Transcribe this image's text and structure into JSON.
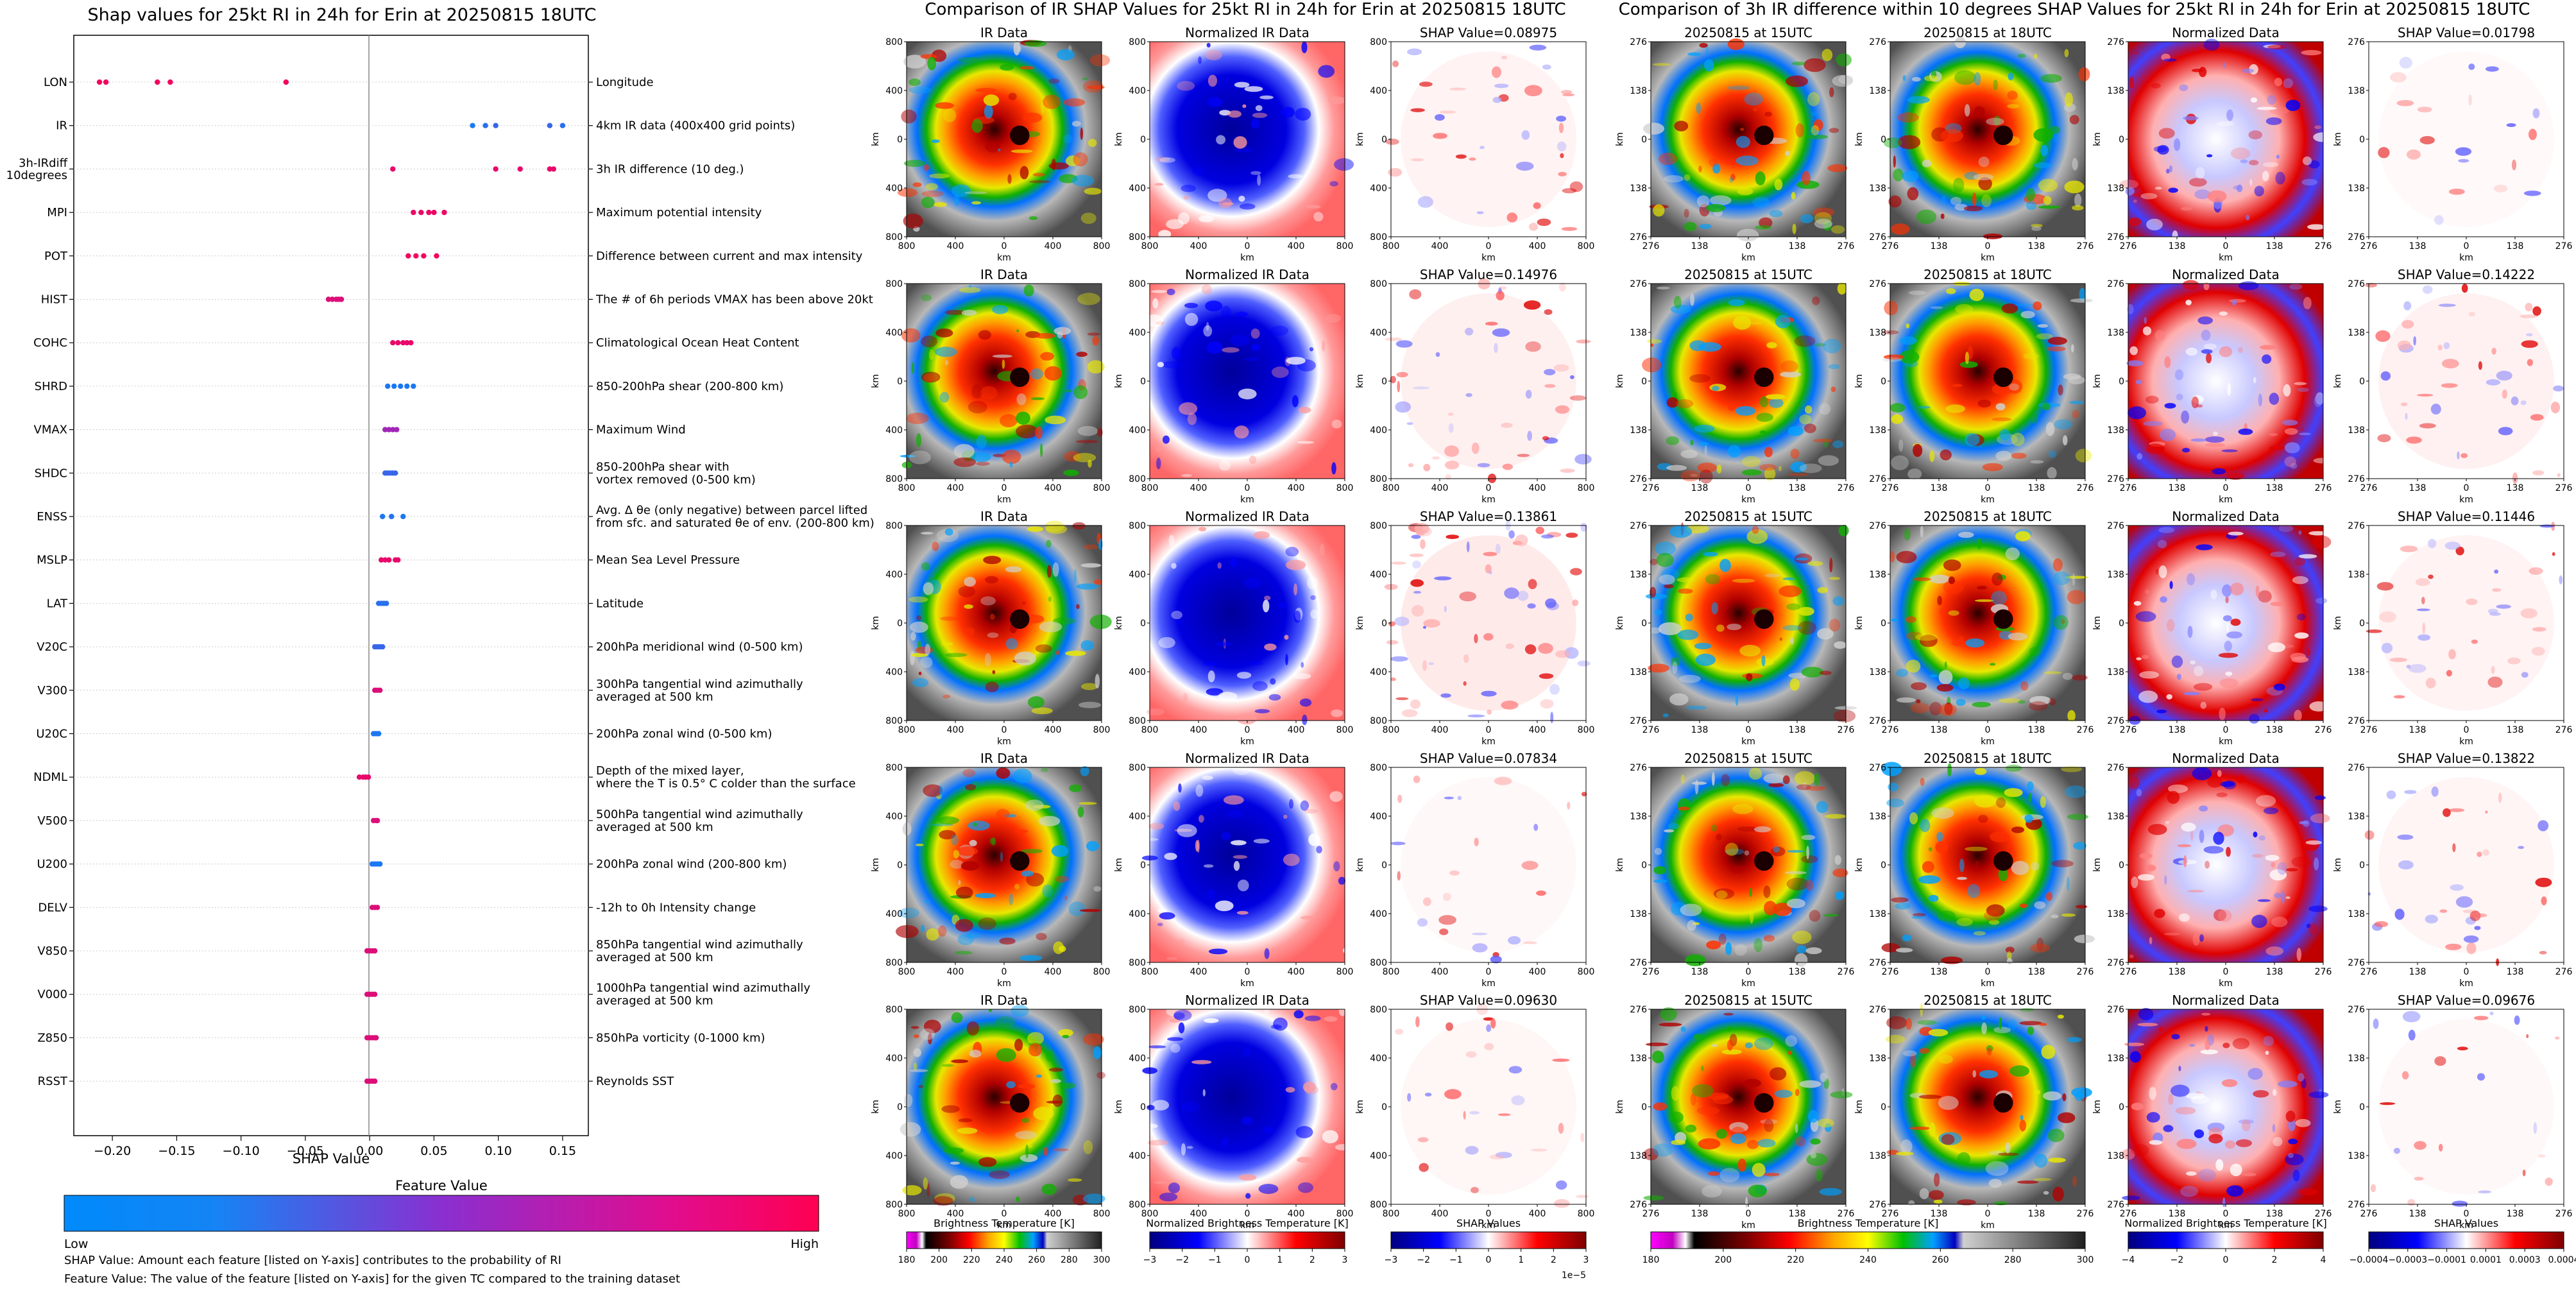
{
  "left_panel": {
    "title": "Shap values for 25kt RI in 24h for Erin at 20250815 18UTC",
    "xlabel": "SHAP Value",
    "colorbar_title": "Feature Value",
    "colorbar_low": "Low",
    "colorbar_high": "High",
    "note1": "SHAP Value: Amount each feature [listed on Y-axis] contributes to the probability of RI",
    "note2": "Feature Value: The value of the feature [listed on Y-axis] for the given TC compared to the training dataset"
  },
  "center_panel": {
    "title": "Comparison of IR SHAP Values for 25kt RI in 24h for Erin at 20250815 18UTC",
    "col_titles": [
      "IR Data",
      "Normalized IR Data"
    ],
    "shap_titles": [
      "SHAP Value=0.08975",
      "SHAP Value=0.14976",
      "SHAP Value=0.13861",
      "SHAP Value=0.07834",
      "SHAP Value=0.09630"
    ],
    "axis_label": "km",
    "ticks": [
      "800",
      "400",
      "0",
      "400",
      "800"
    ],
    "cbar_labels": [
      "Brightness Temperature [K]",
      "Normalized Brightness Temperature [K]",
      "SHAP Values"
    ],
    "cbar_ticks": [
      [
        "180",
        "200",
        "220",
        "240",
        "260",
        "280",
        "300"
      ],
      [
        "−3",
        "−2",
        "−1",
        "0",
        "1",
        "2",
        "3"
      ],
      [
        "−3",
        "−2",
        "−1",
        "0",
        "1",
        "2",
        "3"
      ]
    ],
    "cbar_exponent": "1e−5"
  },
  "right_panel": {
    "title": "Comparison of 3h IR difference within 10 degrees SHAP Values for 25kt RI in 24h for Erin at 20250815 18UTC",
    "col_titles": [
      "20250815 at 15UTC",
      "20250815 at 18UTC",
      "Normalized Data"
    ],
    "shap_titles": [
      "SHAP Value=0.01798",
      "SHAP Value=0.14222",
      "SHAP Value=0.11446",
      "SHAP Value=0.13822",
      "SHAP Value=0.09676"
    ],
    "axis_label": "km",
    "ticks": [
      "276",
      "138",
      "0",
      "138",
      "276"
    ],
    "cbar_labels": [
      "Brightness Temperature [K]",
      "Normalized Brightness Temperature [K]",
      "SHAP Values"
    ],
    "cbar_ticks": [
      [
        "180",
        "200",
        "220",
        "240",
        "260",
        "280",
        "300"
      ],
      [
        "−4",
        "−2",
        "0",
        "2",
        "4"
      ],
      [
        "−0.0004",
        "−0.0003",
        "−0.0001",
        "0.0001",
        "0.0003",
        "0.0004"
      ]
    ]
  },
  "chart_data": {
    "type": "scatter",
    "title": "Shap values for 25kt RI in 24h for Erin at 20250815 18UTC",
    "xlabel": "SHAP Value",
    "ylabel": "",
    "xlim": [
      -0.23,
      0.17
    ],
    "xticks": [
      -0.2,
      -0.15,
      -0.1,
      -0.05,
      0,
      0.05,
      0.1,
      0.15
    ],
    "xtick_labels": [
      "−0.20",
      "−0.15",
      "−0.10",
      "−0.05",
      "0.00",
      "0.05",
      "0.10",
      "0.15"
    ],
    "features": [
      {
        "name": "LON",
        "desc": "Longitude",
        "shap": [
          -0.21,
          -0.205,
          -0.165,
          -0.155,
          -0.065
        ],
        "fv": [
          0.95,
          0.95,
          0.95,
          0.95,
          0.95
        ]
      },
      {
        "name": "IR",
        "desc": "4km IR data (400x400 grid points)",
        "shap": [
          0.08,
          0.09,
          0.098,
          0.14,
          0.15
        ],
        "fv": [
          0.1,
          0.15,
          0.2,
          0.2,
          0.15
        ]
      },
      {
        "name": "3h-IRdiff\n10degrees",
        "desc": "3h IR difference (10 deg.)",
        "shap": [
          0.018,
          0.098,
          0.117,
          0.14,
          0.143
        ],
        "fv": [
          0.9,
          0.9,
          0.9,
          0.9,
          0.9
        ]
      },
      {
        "name": "MPI",
        "desc": "Maximum potential intensity",
        "shap": [
          0.034,
          0.04,
          0.046,
          0.05,
          0.058
        ],
        "fv": [
          0.92,
          0.92,
          0.92,
          0.92,
          0.92
        ]
      },
      {
        "name": "POT",
        "desc": "Difference between current and max intensity",
        "shap": [
          0.03,
          0.036,
          0.042,
          0.052
        ],
        "fv": [
          0.95,
          0.95,
          0.95,
          0.95
        ]
      },
      {
        "name": "HIST",
        "desc": "The # of 6h periods VMAX has been above 20kt",
        "shap": [
          -0.032,
          -0.029,
          -0.026,
          -0.024,
          -0.022
        ],
        "fv": [
          0.85,
          0.85,
          0.85,
          0.85,
          0.85
        ]
      },
      {
        "name": "COHC",
        "desc": "Climatological Ocean Heat Content",
        "shap": [
          0.018,
          0.022,
          0.026,
          0.029,
          0.032
        ],
        "fv": [
          0.9,
          0.9,
          0.9,
          0.9,
          0.9
        ]
      },
      {
        "name": "SHRD",
        "desc": "850-200hPa shear (200-800 km)",
        "shap": [
          0.014,
          0.019,
          0.024,
          0.029,
          0.034
        ],
        "fv": [
          0.1,
          0.1,
          0.1,
          0.1,
          0.1
        ]
      },
      {
        "name": "VMAX",
        "desc": "Maximum Wind",
        "shap": [
          0.012,
          0.015,
          0.018,
          0.021
        ],
        "fv": [
          0.6,
          0.6,
          0.6,
          0.6
        ]
      },
      {
        "name": "SHDC",
        "desc": "850-200hPa shear with\nvortex removed (0-500 km)",
        "shap": [
          0.012,
          0.014,
          0.016,
          0.018,
          0.02
        ],
        "fv": [
          0.2,
          0.2,
          0.2,
          0.2,
          0.2
        ]
      },
      {
        "name": "ENSS",
        "desc": "Avg. Δ θe (only negative) between parcel lifted\nfrom sfc. and saturated θe of env. (200-800 km)",
        "shap": [
          0.01,
          0.017,
          0.026
        ],
        "fv": [
          0.1,
          0.12,
          0.1
        ]
      },
      {
        "name": "MSLP",
        "desc": "Mean Sea Level Pressure",
        "shap": [
          0.009,
          0.012,
          0.015,
          0.02,
          0.022
        ],
        "fv": [
          0.9,
          0.9,
          0.9,
          0.9,
          0.9
        ]
      },
      {
        "name": "LAT",
        "desc": "Latitude",
        "shap": [
          0.007,
          0.009,
          0.011,
          0.013
        ],
        "fv": [
          0.15,
          0.15,
          0.15,
          0.15
        ]
      },
      {
        "name": "V20C",
        "desc": "200hPa meridional wind (0-500 km)",
        "shap": [
          0.004,
          0.006,
          0.008,
          0.01
        ],
        "fv": [
          0.2,
          0.2,
          0.2,
          0.2
        ]
      },
      {
        "name": "V300",
        "desc": "300hPa tangential wind azimuthally\naveraged at 500 km",
        "shap": [
          0.004,
          0.006,
          0.008
        ],
        "fv": [
          0.85,
          0.85,
          0.85
        ]
      },
      {
        "name": "U20C",
        "desc": "200hPa zonal wind (0-500 km)",
        "shap": [
          0.003,
          0.005,
          0.007
        ],
        "fv": [
          0.1,
          0.1,
          0.1
        ]
      },
      {
        "name": "NDML",
        "desc": "Depth of the mixed layer,\nwhere the T is 0.5° C colder than the surface",
        "shap": [
          -0.008,
          -0.005,
          -0.003,
          -0.001
        ],
        "fv": [
          0.9,
          0.9,
          0.9,
          0.9
        ]
      },
      {
        "name": "V500",
        "desc": "500hPa tangential wind azimuthally\naveraged at 500 km",
        "shap": [
          0.003,
          0.005,
          0.006
        ],
        "fv": [
          0.85,
          0.85,
          0.85
        ]
      },
      {
        "name": "U200",
        "desc": "200hPa zonal wind (200-800 km)",
        "shap": [
          0.002,
          0.004,
          0.006,
          0.008
        ],
        "fv": [
          0.1,
          0.1,
          0.1,
          0.1
        ]
      },
      {
        "name": "DELV",
        "desc": "-12h to 0h Intensity change",
        "shap": [
          0.002,
          0.004,
          0.006
        ],
        "fv": [
          0.85,
          0.85,
          0.85
        ]
      },
      {
        "name": "V850",
        "desc": "850hPa tangential wind azimuthally\naveraged at 500 km",
        "shap": [
          -0.002,
          0,
          0.002,
          0.004
        ],
        "fv": [
          0.85,
          0.85,
          0.85,
          0.85
        ]
      },
      {
        "name": "V000",
        "desc": "1000hPa tangential wind azimuthally\naveraged at 500 km",
        "shap": [
          -0.002,
          0,
          0.002,
          0.004
        ],
        "fv": [
          0.85,
          0.85,
          0.85,
          0.85
        ]
      },
      {
        "name": "Z850",
        "desc": "850hPa vorticity (0-1000 km)",
        "shap": [
          -0.002,
          0,
          0.002,
          0.004,
          0.005
        ],
        "fv": [
          0.85,
          0.85,
          0.85,
          0.85,
          0.85
        ]
      },
      {
        "name": "RSST",
        "desc": "Reynolds SST",
        "shap": [
          -0.002,
          0,
          0.002,
          0.004
        ],
        "fv": [
          0.85,
          0.85,
          0.85,
          0.85
        ]
      }
    ]
  }
}
